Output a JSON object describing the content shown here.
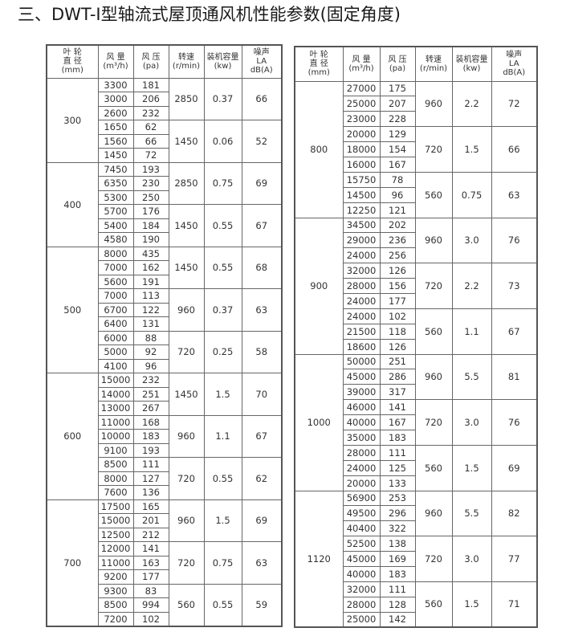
{
  "title": "三、DWT-I型轴流式屋顶通风机性能参数(固定角度)",
  "headers": [
    "叶 轮\n直 径\n(mm)",
    "风 量\n(m³/h)",
    "风 压\n(pa)",
    "转速\n(r/min)",
    "装机容量\n(kw)",
    "噪声\nLA\ndB(A)"
  ],
  "tables": [
    {
      "groups": [
        {
          "diameter": "300",
          "speeds": [
            {
              "speed": "2850",
              "power": "0.37",
              "noise": "66",
              "rows": [
                [
                  "3300",
                  "181"
                ],
                [
                  "3000",
                  "206"
                ],
                [
                  "2600",
                  "232"
                ]
              ]
            },
            {
              "speed": "1450",
              "power": "0.06",
              "noise": "52",
              "rows": [
                [
                  "1650",
                  "62"
                ],
                [
                  "1560",
                  "66"
                ],
                [
                  "1450",
                  "72"
                ]
              ]
            }
          ]
        },
        {
          "diameter": "400",
          "speeds": [
            {
              "speed": "2850",
              "power": "0.75",
              "noise": "69",
              "rows": [
                [
                  "7450",
                  "193"
                ],
                [
                  "6350",
                  "230"
                ],
                [
                  "5300",
                  "250"
                ]
              ]
            },
            {
              "speed": "1450",
              "power": "0.55",
              "noise": "67",
              "rows": [
                [
                  "5700",
                  "176"
                ],
                [
                  "5400",
                  "184"
                ],
                [
                  "4580",
                  "190"
                ]
              ]
            }
          ]
        },
        {
          "diameter": "500",
          "speeds": [
            {
              "speed": "1450",
              "power": "0.55",
              "noise": "68",
              "rows": [
                [
                  "8000",
                  "435"
                ],
                [
                  "7000",
                  "162"
                ],
                [
                  "5600",
                  "191"
                ]
              ]
            },
            {
              "speed": "960",
              "power": "0.37",
              "noise": "63",
              "rows": [
                [
                  "7000",
                  "113"
                ],
                [
                  "6700",
                  "122"
                ],
                [
                  "6400",
                  "131"
                ]
              ]
            },
            {
              "speed": "720",
              "power": "0.25",
              "noise": "58",
              "rows": [
                [
                  "6000",
                  "88"
                ],
                [
                  "5000",
                  "92"
                ],
                [
                  "4100",
                  "96"
                ]
              ]
            }
          ]
        },
        {
          "diameter": "600",
          "speeds": [
            {
              "speed": "1450",
              "power": "1.5",
              "noise": "70",
              "rows": [
                [
                  "15000",
                  "232"
                ],
                [
                  "14000",
                  "251"
                ],
                [
                  "13000",
                  "267"
                ]
              ]
            },
            {
              "speed": "960",
              "power": "1.1",
              "noise": "67",
              "rows": [
                [
                  "11000",
                  "168"
                ],
                [
                  "10000",
                  "183"
                ],
                [
                  "9100",
                  "193"
                ]
              ]
            },
            {
              "speed": "720",
              "power": "0.55",
              "noise": "62",
              "rows": [
                [
                  "8500",
                  "111"
                ],
                [
                  "8000",
                  "127"
                ],
                [
                  "7600",
                  "136"
                ]
              ]
            }
          ]
        },
        {
          "diameter": "700",
          "speeds": [
            {
              "speed": "960",
              "power": "1.5",
              "noise": "69",
              "rows": [
                [
                  "17500",
                  "165"
                ],
                [
                  "15000",
                  "201"
                ],
                [
                  "12500",
                  "212"
                ]
              ]
            },
            {
              "speed": "720",
              "power": "0.75",
              "noise": "63",
              "rows": [
                [
                  "12000",
                  "141"
                ],
                [
                  "11000",
                  "163"
                ],
                [
                  "9200",
                  "177"
                ]
              ]
            },
            {
              "speed": "560",
              "power": "0.55",
              "noise": "59",
              "rows": [
                [
                  "9300",
                  "83"
                ],
                [
                  "8500",
                  "994"
                ],
                [
                  "7200",
                  "102"
                ]
              ]
            }
          ]
        }
      ]
    },
    {
      "groups": [
        {
          "diameter": "800",
          "speeds": [
            {
              "speed": "960",
              "power": "2.2",
              "noise": "72",
              "rows": [
                [
                  "27000",
                  "175"
                ],
                [
                  "25000",
                  "207"
                ],
                [
                  "23000",
                  "228"
                ]
              ]
            },
            {
              "speed": "720",
              "power": "1.5",
              "noise": "66",
              "rows": [
                [
                  "20000",
                  "129"
                ],
                [
                  "18000",
                  "154"
                ],
                [
                  "16000",
                  "167"
                ]
              ]
            },
            {
              "speed": "560",
              "power": "0.75",
              "noise": "63",
              "rows": [
                [
                  "15750",
                  "78"
                ],
                [
                  "14500",
                  "96"
                ],
                [
                  "12250",
                  "121"
                ]
              ]
            }
          ]
        },
        {
          "diameter": "900",
          "speeds": [
            {
              "speed": "960",
              "power": "3.0",
              "noise": "76",
              "rows": [
                [
                  "34500",
                  "202"
                ],
                [
                  "29000",
                  "236"
                ],
                [
                  "24000",
                  "256"
                ]
              ]
            },
            {
              "speed": "720",
              "power": "2.2",
              "noise": "73",
              "rows": [
                [
                  "32000",
                  "126"
                ],
                [
                  "28000",
                  "156"
                ],
                [
                  "24000",
                  "177"
                ]
              ]
            },
            {
              "speed": "560",
              "power": "1.1",
              "noise": "67",
              "rows": [
                [
                  "24000",
                  "102"
                ],
                [
                  "21500",
                  "118"
                ],
                [
                  "18600",
                  "126"
                ]
              ]
            }
          ]
        },
        {
          "diameter": "1000",
          "speeds": [
            {
              "speed": "960",
              "power": "5.5",
              "noise": "81",
              "rows": [
                [
                  "50000",
                  "251"
                ],
                [
                  "45000",
                  "286"
                ],
                [
                  "39000",
                  "317"
                ]
              ]
            },
            {
              "speed": "720",
              "power": "3.0",
              "noise": "76",
              "rows": [
                [
                  "46000",
                  "141"
                ],
                [
                  "40000",
                  "167"
                ],
                [
                  "35000",
                  "183"
                ]
              ]
            },
            {
              "speed": "560",
              "power": "1.5",
              "noise": "69",
              "rows": [
                [
                  "28000",
                  "111"
                ],
                [
                  "24000",
                  "125"
                ],
                [
                  "20000",
                  "133"
                ]
              ]
            }
          ]
        },
        {
          "diameter": "1120",
          "speeds": [
            {
              "speed": "960",
              "power": "5.5",
              "noise": "82",
              "rows": [
                [
                  "56900",
                  "253"
                ],
                [
                  "49500",
                  "296"
                ],
                [
                  "40400",
                  "322"
                ]
              ]
            },
            {
              "speed": "720",
              "power": "3.0",
              "noise": "77",
              "rows": [
                [
                  "52500",
                  "138"
                ],
                [
                  "45000",
                  "169"
                ],
                [
                  "40000",
                  "183"
                ]
              ]
            },
            {
              "speed": "560",
              "power": "1.5",
              "noise": "71",
              "rows": [
                [
                  "32000",
                  "111"
                ],
                [
                  "28000",
                  "128"
                ],
                [
                  "25000",
                  "142"
                ]
              ]
            }
          ]
        }
      ]
    }
  ]
}
